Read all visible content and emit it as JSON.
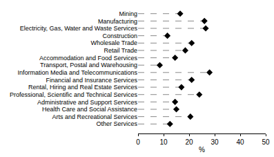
{
  "chart_data": {
    "type": "dot",
    "orientation": "horizontal",
    "categories": [
      "Mining",
      "Manufacturing",
      "Electricity, Gas, Water and Waste Services",
      "Construction",
      "Wholesale Trade",
      "Retail Trade",
      "Accommodation and Food Services",
      "Transport, Postal and Warehousing",
      "Information Media and Telecommunications",
      "Financial and Insurance Services",
      "Rental, Hiring and Real Estate Services",
      "Professional, Scientific and Technical Services",
      "Administrative and Support Services",
      "Health Care and Social Assistance",
      "Arts and Recreational Services",
      "Other Services"
    ],
    "values": [
      16.5,
      26,
      26.5,
      11.5,
      21,
      18.5,
      14.5,
      8.5,
      28,
      21,
      17,
      24,
      14.5,
      15,
      20.5,
      12.5
    ],
    "color": "#000000",
    "marker": "diamond",
    "line_style": "dashed",
    "x_label": "%",
    "xlim": [
      0,
      50
    ],
    "xticks": [
      0,
      10,
      20,
      30,
      40,
      50
    ],
    "grid": false
  }
}
